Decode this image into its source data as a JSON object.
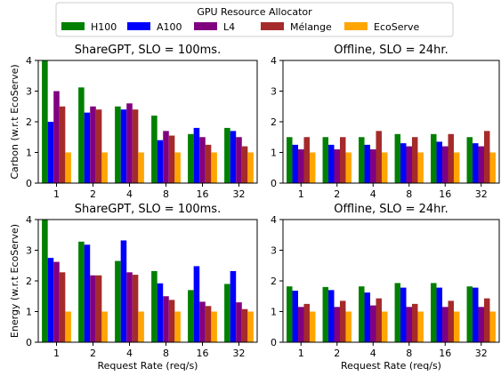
{
  "legend": {
    "title": "GPU Resource Allocator",
    "entries": [
      {
        "name": "H100",
        "color": "#008000"
      },
      {
        "name": "A100",
        "color": "#0000ff"
      },
      {
        "name": "L4",
        "color": "#800080"
      },
      {
        "name": "Mélange",
        "color": "#a52a2a"
      },
      {
        "name": "EcoServe",
        "color": "#ffa500"
      }
    ]
  },
  "chart_data": [
    {
      "type": "bar",
      "title": "ShareGPT, SLO = 100ms.",
      "ylabel": "Carbon (w.r.t EcoServe)",
      "xlabel": "",
      "ylim": [
        0,
        4
      ],
      "yticks": [
        "0",
        "1",
        "2",
        "3",
        "4"
      ],
      "categories": [
        "1",
        "2",
        "4",
        "8",
        "16",
        "32"
      ],
      "series": [
        {
          "name": "H100",
          "values": [
            4.0,
            3.12,
            2.5,
            2.2,
            1.6,
            1.8
          ]
        },
        {
          "name": "A100",
          "values": [
            2.0,
            2.3,
            2.4,
            1.4,
            1.8,
            1.7
          ]
        },
        {
          "name": "L4",
          "values": [
            3.0,
            2.5,
            2.6,
            1.7,
            1.5,
            1.5
          ]
        },
        {
          "name": "Mélange",
          "values": [
            2.5,
            2.4,
            2.4,
            1.55,
            1.25,
            1.2
          ]
        },
        {
          "name": "EcoServe",
          "values": [
            1.0,
            1.0,
            1.0,
            1.0,
            1.0,
            1.0
          ]
        }
      ]
    },
    {
      "type": "bar",
      "title": "Offline, SLO = 24hr.",
      "ylabel": "",
      "xlabel": "",
      "ylim": [
        0,
        4
      ],
      "yticks": [
        "0",
        "1",
        "2",
        "3",
        "4"
      ],
      "categories": [
        "1",
        "2",
        "4",
        "8",
        "16",
        "32"
      ],
      "series": [
        {
          "name": "H100",
          "values": [
            1.5,
            1.5,
            1.5,
            1.6,
            1.6,
            1.5
          ]
        },
        {
          "name": "A100",
          "values": [
            1.25,
            1.25,
            1.25,
            1.3,
            1.35,
            1.3
          ]
        },
        {
          "name": "L4",
          "values": [
            1.1,
            1.1,
            1.1,
            1.2,
            1.2,
            1.2
          ]
        },
        {
          "name": "Mélange",
          "values": [
            1.5,
            1.5,
            1.7,
            1.5,
            1.6,
            1.7
          ]
        },
        {
          "name": "EcoServe",
          "values": [
            1.0,
            1.0,
            1.0,
            1.0,
            1.0,
            1.0
          ]
        }
      ]
    },
    {
      "type": "bar",
      "title": "ShareGPT, SLO = 100ms.",
      "ylabel": "Energy (w.r.t EcoServe)",
      "xlabel": "Request Rate (req/s)",
      "ylim": [
        0,
        4
      ],
      "yticks": [
        "0",
        "1",
        "2",
        "3",
        "4"
      ],
      "categories": [
        "1",
        "2",
        "4",
        "8",
        "16",
        "32"
      ],
      "series": [
        {
          "name": "H100",
          "values": [
            4.0,
            3.28,
            2.65,
            2.32,
            1.7,
            1.9
          ]
        },
        {
          "name": "A100",
          "values": [
            2.75,
            3.18,
            3.32,
            1.92,
            2.48,
            2.32
          ]
        },
        {
          "name": "L4",
          "values": [
            2.62,
            2.18,
            2.28,
            1.5,
            1.32,
            1.3
          ]
        },
        {
          "name": "Mélange",
          "values": [
            2.28,
            2.18,
            2.2,
            1.38,
            1.18,
            1.08
          ]
        },
        {
          "name": "EcoServe",
          "values": [
            1.0,
            1.0,
            1.0,
            1.0,
            1.0,
            1.0
          ]
        }
      ]
    },
    {
      "type": "bar",
      "title": "Offline, SLO = 24hr.",
      "ylabel": "",
      "xlabel": "Request Rate (req/s)",
      "ylim": [
        0,
        4
      ],
      "yticks": [
        "0",
        "1",
        "2",
        "3",
        "4"
      ],
      "categories": [
        "1",
        "2",
        "4",
        "8",
        "16",
        "32"
      ],
      "series": [
        {
          "name": "H100",
          "values": [
            1.82,
            1.8,
            1.82,
            1.93,
            1.93,
            1.82
          ]
        },
        {
          "name": "A100",
          "values": [
            1.68,
            1.7,
            1.62,
            1.78,
            1.78,
            1.78
          ]
        },
        {
          "name": "L4",
          "values": [
            1.15,
            1.15,
            1.2,
            1.15,
            1.15,
            1.15
          ]
        },
        {
          "name": "Mélange",
          "values": [
            1.25,
            1.35,
            1.43,
            1.25,
            1.35,
            1.43
          ]
        },
        {
          "name": "EcoServe",
          "values": [
            1.0,
            1.0,
            1.0,
            1.0,
            1.0,
            1.0
          ]
        }
      ]
    }
  ]
}
